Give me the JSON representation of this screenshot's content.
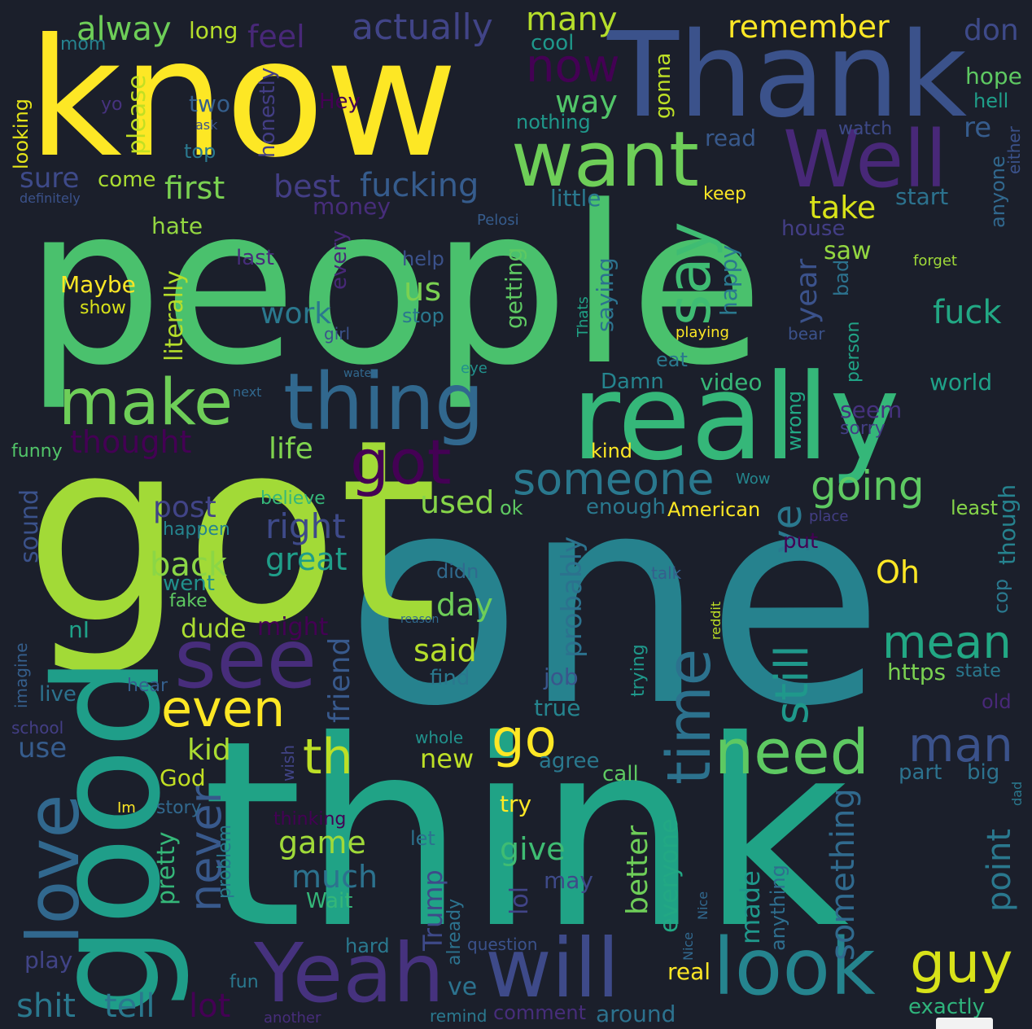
{
  "words": [
    {
      "text": "people",
      "color": "#4ac16d"
    },
    {
      "text": "one",
      "color": "#26828e"
    },
    {
      "text": "think",
      "color": "#20a386"
    },
    {
      "text": "got",
      "color": "#a2da37"
    },
    {
      "text": "know",
      "color": "#fde725"
    },
    {
      "text": "Thank",
      "color": "#3b528b"
    },
    {
      "text": "good",
      "color": "#1f9e89"
    },
    {
      "text": "really",
      "color": "#35b779"
    },
    {
      "text": "thing",
      "color": "#31688e"
    },
    {
      "text": "want",
      "color": "#6ece58"
    },
    {
      "text": "Well",
      "color": "#482878"
    },
    {
      "text": "see",
      "color": "#472d7b"
    },
    {
      "text": "Yeah",
      "color": "#46327e"
    },
    {
      "text": "will",
      "color": "#3e4a89"
    },
    {
      "text": "look",
      "color": "#25848e"
    },
    {
      "text": "love",
      "color": "#31688e"
    },
    {
      "text": "make",
      "color": "#6ece58"
    },
    {
      "text": "time",
      "color": "#2c728e"
    },
    {
      "text": "need",
      "color": "#5ec962"
    },
    {
      "text": "say",
      "color": "#3fbc73"
    },
    {
      "text": "got",
      "color": "#440154"
    },
    {
      "text": "go",
      "color": "#fde725"
    },
    {
      "text": "even",
      "color": "#fde725"
    },
    {
      "text": "guy",
      "color": "#d8e219"
    },
    {
      "text": "still",
      "color": "#1f988b"
    },
    {
      "text": "mean",
      "color": "#22a884"
    },
    {
      "text": "never",
      "color": "#38598c"
    },
    {
      "text": "th",
      "color": "#bddf26"
    },
    {
      "text": "man",
      "color": "#3b528b"
    },
    {
      "text": "someone",
      "color": "#2a788e"
    },
    {
      "text": "going",
      "color": "#5ec962"
    },
    {
      "text": "ye",
      "color": "#2a788e"
    },
    {
      "text": "now",
      "color": "#440154"
    },
    {
      "text": "alway",
      "color": "#6ece58"
    },
    {
      "text": "many",
      "color": "#b5de2b"
    },
    {
      "text": "actually",
      "color": "#414487"
    },
    {
      "text": "remember",
      "color": "#fde725"
    },
    {
      "text": "don",
      "color": "#3e4a89"
    },
    {
      "text": "long",
      "color": "#b5de2b"
    },
    {
      "text": "feel",
      "color": "#482878"
    },
    {
      "text": "mom",
      "color": "#26828e"
    },
    {
      "text": "cool",
      "color": "#1f988b"
    },
    {
      "text": "way",
      "color": "#52c569"
    },
    {
      "text": "hope",
      "color": "#5ec962"
    },
    {
      "text": "hell",
      "color": "#1f9e89"
    },
    {
      "text": "re",
      "color": "#365c8d"
    },
    {
      "text": "read",
      "color": "#38598c"
    },
    {
      "text": "watch",
      "color": "#3e4a89"
    },
    {
      "text": "yo",
      "color": "#46327e"
    },
    {
      "text": "two",
      "color": "#355f8d"
    },
    {
      "text": "Hey",
      "color": "#440154"
    },
    {
      "text": "nothing",
      "color": "#1f988b"
    },
    {
      "text": "please",
      "color": "#c2df23"
    },
    {
      "text": "ask",
      "color": "#3b528b"
    },
    {
      "text": "top",
      "color": "#2a788e"
    },
    {
      "text": "looking",
      "color": "#e5e419"
    },
    {
      "text": "honestly",
      "color": "#433e85"
    },
    {
      "text": "gonna",
      "color": "#bddf26"
    },
    {
      "text": "person",
      "color": "#20a386"
    },
    {
      "text": "either",
      "color": "#3b528b"
    },
    {
      "text": "sure",
      "color": "#3e4a89"
    },
    {
      "text": "come",
      "color": "#aadc32"
    },
    {
      "text": "first",
      "color": "#7ad151"
    },
    {
      "text": "best",
      "color": "#433e85"
    },
    {
      "text": "fucking",
      "color": "#365c8d"
    },
    {
      "text": "little",
      "color": "#2a788e"
    },
    {
      "text": "keep",
      "color": "#fde725"
    },
    {
      "text": "start",
      "color": "#2c728e"
    },
    {
      "text": "definitely",
      "color": "#3b528b"
    },
    {
      "text": "money",
      "color": "#472d7b"
    },
    {
      "text": "take",
      "color": "#d8e219"
    },
    {
      "text": "anyone",
      "color": "#31688e"
    },
    {
      "text": "hate",
      "color": "#93d741"
    },
    {
      "text": "Pelosi",
      "color": "#365c8d"
    },
    {
      "text": "house",
      "color": "#433e85"
    },
    {
      "text": "saw",
      "color": "#93d741"
    },
    {
      "text": "last",
      "color": "#472d7b"
    },
    {
      "text": "help",
      "color": "#3b528b"
    },
    {
      "text": "every",
      "color": "#482878"
    },
    {
      "text": "forget",
      "color": "#a0da39"
    },
    {
      "text": "literally",
      "color": "#b5de2b"
    },
    {
      "text": "Maybe",
      "color": "#fde725"
    },
    {
      "text": "us",
      "color": "#7ad151"
    },
    {
      "text": "getting",
      "color": "#5ec962"
    },
    {
      "text": "saying",
      "color": "#2c728e"
    },
    {
      "text": "happy",
      "color": "#2a788e"
    },
    {
      "text": "year",
      "color": "#3b528b"
    },
    {
      "text": "bad",
      "color": "#2c728e"
    },
    {
      "text": "show",
      "color": "#d8e219"
    },
    {
      "text": "work",
      "color": "#2a788e"
    },
    {
      "text": "stop",
      "color": "#2a788e"
    },
    {
      "text": "Thats",
      "color": "#20a386"
    },
    {
      "text": "playing",
      "color": "#fde725"
    },
    {
      "text": "fuck",
      "color": "#22a884"
    },
    {
      "text": "girl",
      "color": "#3b528b"
    },
    {
      "text": "bear",
      "color": "#3b528b"
    },
    {
      "text": "eat",
      "color": "#2a788e"
    },
    {
      "text": "water",
      "color": "#31688e"
    },
    {
      "text": "eye",
      "color": "#21918c"
    },
    {
      "text": "next",
      "color": "#31688e"
    },
    {
      "text": "Damn",
      "color": "#25848e"
    },
    {
      "text": "video",
      "color": "#37b878"
    },
    {
      "text": "world",
      "color": "#1fa188"
    },
    {
      "text": "wrong",
      "color": "#22a884"
    },
    {
      "text": "seem",
      "color": "#46327e"
    },
    {
      "text": "sorry",
      "color": "#433e85"
    },
    {
      "text": "thought",
      "color": "#440154"
    },
    {
      "text": "funny",
      "color": "#52c569"
    },
    {
      "text": "life",
      "color": "#7fd34e"
    },
    {
      "text": "kind",
      "color": "#fde725"
    },
    {
      "text": "Wow",
      "color": "#24868e"
    },
    {
      "text": "sound",
      "color": "#3b528b"
    },
    {
      "text": "post",
      "color": "#414487"
    },
    {
      "text": "believe",
      "color": "#35b779"
    },
    {
      "text": "used",
      "color": "#86d549"
    },
    {
      "text": "ok",
      "color": "#5ec962"
    },
    {
      "text": "enough",
      "color": "#2a788e"
    },
    {
      "text": "American",
      "color": "#fde725"
    },
    {
      "text": "place",
      "color": "#433e85"
    },
    {
      "text": "least",
      "color": "#86d549"
    },
    {
      "text": "right",
      "color": "#3e4a89"
    },
    {
      "text": "happen",
      "color": "#25848e"
    },
    {
      "text": "great",
      "color": "#1f9e89"
    },
    {
      "text": "put",
      "color": "#440154"
    },
    {
      "text": "though",
      "color": "#26828e"
    },
    {
      "text": "back",
      "color": "#8bd646"
    },
    {
      "text": "went",
      "color": "#21918c"
    },
    {
      "text": "didn",
      "color": "#306a8e"
    },
    {
      "text": "Oh",
      "color": "#fde725"
    },
    {
      "text": "cop",
      "color": "#2a788e"
    },
    {
      "text": "fake",
      "color": "#5ec962"
    },
    {
      "text": "probably",
      "color": "#2c728e"
    },
    {
      "text": "talk",
      "color": "#355f8d"
    },
    {
      "text": "day",
      "color": "#6ece58"
    },
    {
      "text": "dude",
      "color": "#aadc32"
    },
    {
      "text": "might",
      "color": "#440154"
    },
    {
      "text": "nI",
      "color": "#1fa188"
    },
    {
      "text": "reason",
      "color": "#306a8e"
    },
    {
      "text": "reddit",
      "color": "#bddf26"
    },
    {
      "text": "imagine",
      "color": "#355f8d"
    },
    {
      "text": "friend",
      "color": "#38598c"
    },
    {
      "text": "said",
      "color": "#b5de2b"
    },
    {
      "text": "job",
      "color": "#39568c"
    },
    {
      "text": "trying",
      "color": "#1f988b"
    },
    {
      "text": "https",
      "color": "#7ad151"
    },
    {
      "text": "state",
      "color": "#2a788e"
    },
    {
      "text": "find",
      "color": "#2a788e"
    },
    {
      "text": "hear",
      "color": "#355f8d"
    },
    {
      "text": "live",
      "color": "#2c728e"
    },
    {
      "text": "true",
      "color": "#25848e"
    },
    {
      "text": "old",
      "color": "#482878"
    },
    {
      "text": "school",
      "color": "#433e85"
    },
    {
      "text": "use",
      "color": "#365c8d"
    },
    {
      "text": "kid",
      "color": "#aadc32"
    },
    {
      "text": "whole",
      "color": "#21918c"
    },
    {
      "text": "new",
      "color": "#bddf26"
    },
    {
      "text": "agree",
      "color": "#2a788e"
    },
    {
      "text": "wish",
      "color": "#414487"
    },
    {
      "text": "call",
      "color": "#5ec962"
    },
    {
      "text": "part",
      "color": "#2c728e"
    },
    {
      "text": "big",
      "color": "#2c728e"
    },
    {
      "text": "God",
      "color": "#c2df23"
    },
    {
      "text": "dad",
      "color": "#2a788e"
    },
    {
      "text": "try",
      "color": "#fde725"
    },
    {
      "text": "Im",
      "color": "#fde725"
    },
    {
      "text": "story",
      "color": "#31688e"
    },
    {
      "text": "thinking",
      "color": "#440154"
    },
    {
      "text": "game",
      "color": "#a0da39"
    },
    {
      "text": "give",
      "color": "#3fbc73"
    },
    {
      "text": "let",
      "color": "#2c728e"
    },
    {
      "text": "point",
      "color": "#2a788e"
    },
    {
      "text": "better",
      "color": "#6ece58"
    },
    {
      "text": "everyone",
      "color": "#22a884"
    },
    {
      "text": "something",
      "color": "#306a8e"
    },
    {
      "text": "pretty",
      "color": "#35b779"
    },
    {
      "text": "problem",
      "color": "#2a788e"
    },
    {
      "text": "much",
      "color": "#2c728e"
    },
    {
      "text": "Trump",
      "color": "#3e4a89"
    },
    {
      "text": "lol",
      "color": "#414487"
    },
    {
      "text": "may",
      "color": "#3e4a89"
    },
    {
      "text": "made",
      "color": "#1f988b"
    },
    {
      "text": "anything",
      "color": "#2e6e8e"
    },
    {
      "text": "already",
      "color": "#2c728e"
    },
    {
      "text": "Wait",
      "color": "#35b779"
    },
    {
      "text": "question",
      "color": "#3b528b"
    },
    {
      "text": "play",
      "color": "#414487"
    },
    {
      "text": "hard",
      "color": "#2a788e"
    },
    {
      "text": "Nice",
      "color": "#31688e"
    },
    {
      "text": "Nice",
      "color": "#31688e"
    },
    {
      "text": "real",
      "color": "#fde725"
    },
    {
      "text": "fun",
      "color": "#2a788e"
    },
    {
      "text": "ve",
      "color": "#2c728e"
    },
    {
      "text": "exactly",
      "color": "#2fb47c"
    },
    {
      "text": "shit",
      "color": "#2a788e"
    },
    {
      "text": "tell",
      "color": "#2a788e"
    },
    {
      "text": "lot",
      "color": "#440154"
    },
    {
      "text": "another",
      "color": "#472d7b"
    },
    {
      "text": "remind",
      "color": "#2a788e"
    },
    {
      "text": "comment",
      "color": "#472d7b"
    },
    {
      "text": "around",
      "color": "#2c728e"
    }
  ]
}
